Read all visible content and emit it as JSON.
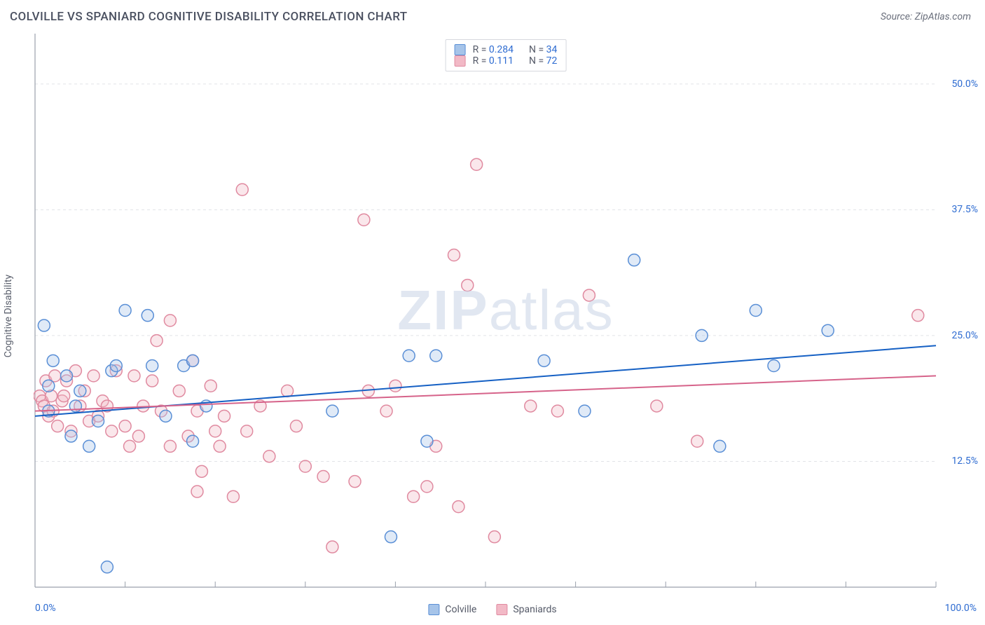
{
  "title": "COLVILLE VS SPANIARD COGNITIVE DISABILITY CORRELATION CHART",
  "source_label": "Source: ZipAtlas.com",
  "ylabel": "Cognitive Disability",
  "watermark": {
    "zip": "ZIP",
    "atlas": "atlas"
  },
  "chart": {
    "type": "scatter",
    "background_color": "#ffffff",
    "axis_color": "#9aa0ac",
    "grid_color": "#e1e3e8",
    "grid_dash": "4 4",
    "xlim": [
      0,
      100
    ],
    "ylim": [
      0,
      55
    ],
    "x_ticks_major": [
      0,
      100
    ],
    "x_ticks_minor_count": 10,
    "y_ticks": [
      {
        "v": 12.5,
        "label": "12.5%"
      },
      {
        "v": 25.0,
        "label": "25.0%"
      },
      {
        "v": 37.5,
        "label": "37.5%"
      },
      {
        "v": 50.0,
        "label": "50.0%"
      }
    ],
    "x_min_label": "0.0%",
    "x_max_label": "100.0%",
    "tick_label_color": "#2d6bd1",
    "tick_label_fontsize": 14,
    "marker_radius": 8.5,
    "marker_stroke_width": 1.5,
    "marker_fill_opacity": 0.35,
    "line_width": 2
  },
  "series": [
    {
      "name": "Colville",
      "color_stroke": "#5a8fd6",
      "color_fill": "#a6c4e9",
      "r_label": "R =",
      "r_value": "0.284",
      "n_label": "N =",
      "n_value": "34",
      "trend": {
        "x1": 0,
        "y1": 17.0,
        "x2": 100,
        "y2": 24.0,
        "color": "#1560c4"
      },
      "points": [
        [
          1.0,
          26.0
        ],
        [
          1.5,
          17.5
        ],
        [
          1.5,
          20.0
        ],
        [
          2.0,
          22.5
        ],
        [
          3.5,
          21.0
        ],
        [
          4.0,
          15.0
        ],
        [
          4.5,
          18.0
        ],
        [
          5.0,
          19.5
        ],
        [
          6.0,
          14.0
        ],
        [
          7.0,
          16.5
        ],
        [
          8.0,
          2.0
        ],
        [
          8.5,
          21.5
        ],
        [
          9.0,
          22.0
        ],
        [
          10.0,
          27.5
        ],
        [
          12.5,
          27.0
        ],
        [
          13.0,
          22.0
        ],
        [
          14.5,
          17.0
        ],
        [
          16.5,
          22.0
        ],
        [
          17.5,
          14.5
        ],
        [
          17.5,
          22.5
        ],
        [
          19.0,
          18.0
        ],
        [
          33.0,
          17.5
        ],
        [
          39.5,
          5.0
        ],
        [
          41.5,
          23.0
        ],
        [
          43.5,
          14.5
        ],
        [
          44.5,
          23.0
        ],
        [
          56.5,
          22.5
        ],
        [
          61.0,
          17.5
        ],
        [
          66.5,
          32.5
        ],
        [
          74.0,
          25.0
        ],
        [
          76.0,
          14.0
        ],
        [
          80.0,
          27.5
        ],
        [
          82.0,
          22.0
        ],
        [
          88.0,
          25.5
        ]
      ]
    },
    {
      "name": "Spaniards",
      "color_stroke": "#e08aa0",
      "color_fill": "#f2b9c6",
      "r_label": "R =",
      "r_value": "0.111",
      "n_label": "N =",
      "n_value": "72",
      "trend": {
        "x1": 0,
        "y1": 17.5,
        "x2": 100,
        "y2": 21.0,
        "color": "#d6638a"
      },
      "points": [
        [
          0.5,
          19.0
        ],
        [
          0.8,
          18.5
        ],
        [
          1.0,
          18.0
        ],
        [
          1.2,
          20.5
        ],
        [
          1.5,
          17.0
        ],
        [
          1.8,
          19.0
        ],
        [
          2.0,
          17.5
        ],
        [
          2.2,
          21.0
        ],
        [
          2.5,
          16.0
        ],
        [
          3.0,
          18.5
        ],
        [
          3.2,
          19.0
        ],
        [
          3.5,
          20.5
        ],
        [
          4.0,
          15.5
        ],
        [
          4.5,
          21.5
        ],
        [
          5.0,
          18.0
        ],
        [
          5.5,
          19.5
        ],
        [
          6.0,
          16.5
        ],
        [
          6.5,
          21.0
        ],
        [
          7.0,
          17.0
        ],
        [
          7.5,
          18.5
        ],
        [
          8.0,
          18.0
        ],
        [
          8.5,
          15.5
        ],
        [
          9.0,
          21.5
        ],
        [
          10.0,
          16.0
        ],
        [
          11.0,
          21.0
        ],
        [
          11.5,
          15.0
        ],
        [
          12.0,
          18.0
        ],
        [
          13.5,
          24.5
        ],
        [
          14.0,
          17.5
        ],
        [
          15.0,
          26.5
        ],
        [
          15.0,
          14.0
        ],
        [
          16.0,
          19.5
        ],
        [
          17.0,
          15.0
        ],
        [
          17.5,
          22.5
        ],
        [
          18.0,
          17.5
        ],
        [
          18.0,
          9.5
        ],
        [
          18.5,
          11.5
        ],
        [
          19.5,
          20.0
        ],
        [
          20.0,
          15.5
        ],
        [
          20.5,
          14.0
        ],
        [
          21.0,
          17.0
        ],
        [
          22.0,
          9.0
        ],
        [
          23.0,
          39.5
        ],
        [
          23.5,
          15.5
        ],
        [
          25.0,
          18.0
        ],
        [
          26.0,
          13.0
        ],
        [
          28.0,
          19.5
        ],
        [
          29.0,
          16.0
        ],
        [
          30.0,
          12.0
        ],
        [
          32.0,
          11.0
        ],
        [
          33.0,
          4.0
        ],
        [
          35.5,
          10.5
        ],
        [
          36.5,
          36.5
        ],
        [
          37.0,
          19.5
        ],
        [
          39.0,
          17.5
        ],
        [
          40.0,
          20.0
        ],
        [
          42.0,
          9.0
        ],
        [
          43.5,
          10.0
        ],
        [
          44.5,
          14.0
        ],
        [
          46.5,
          33.0
        ],
        [
          47.0,
          8.0
        ],
        [
          48.0,
          30.0
        ],
        [
          49.0,
          42.0
        ],
        [
          51.0,
          5.0
        ],
        [
          55.0,
          18.0
        ],
        [
          58.0,
          17.5
        ],
        [
          61.5,
          29.0
        ],
        [
          69.0,
          18.0
        ],
        [
          73.5,
          14.5
        ],
        [
          98.0,
          27.0
        ],
        [
          10.5,
          14.0
        ],
        [
          13.0,
          20.5
        ]
      ]
    }
  ],
  "legend_bottom": [
    {
      "swatch_stroke": "#5a8fd6",
      "swatch_fill": "#a6c4e9",
      "label": "Colville"
    },
    {
      "swatch_stroke": "#e08aa0",
      "swatch_fill": "#f2b9c6",
      "label": "Spaniards"
    }
  ]
}
